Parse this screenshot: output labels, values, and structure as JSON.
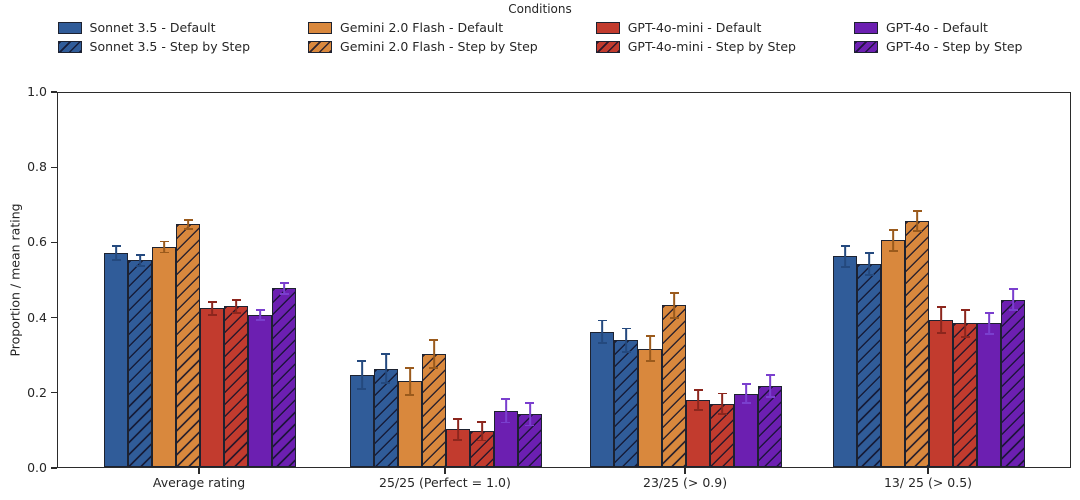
{
  "chart_data": {
    "type": "bar",
    "legend_title": "Conditions",
    "ylabel": "Proportion / mean rating",
    "ylim": [
      0,
      1.0
    ],
    "yticks": [
      "0.0",
      "0.2",
      "0.4",
      "0.6",
      "0.8",
      "1.0"
    ],
    "categories": [
      "Average rating",
      "25/25 (Perfect = 1.0)",
      "23/25 (> 0.9)",
      "13/ 25 (> 0.5)"
    ],
    "series": [
      {
        "name": "Sonnet 3.5 - Default",
        "color": "#305c99",
        "err_color": "#24497e",
        "hatch": false,
        "values": [
          0.57,
          0.245,
          0.36,
          0.56
        ],
        "errors": [
          0.021,
          0.04,
          0.032,
          0.03
        ]
      },
      {
        "name": "Sonnet 3.5 - Step by Step",
        "color": "#305c99",
        "err_color": "#24497e",
        "hatch": true,
        "values": [
          0.55,
          0.262,
          0.337,
          0.54
        ],
        "errors": [
          0.017,
          0.041,
          0.034,
          0.032
        ]
      },
      {
        "name": "Gemini 2.0 Flash - Default",
        "color": "#d9883d",
        "err_color": "#9a5a1c",
        "hatch": false,
        "values": [
          0.585,
          0.228,
          0.315,
          0.603
        ],
        "errors": [
          0.017,
          0.038,
          0.035,
          0.03
        ]
      },
      {
        "name": "Gemini 2.0 Flash - Step by Step",
        "color": "#d9883d",
        "err_color": "#9a5a1c",
        "hatch": true,
        "values": [
          0.645,
          0.3,
          0.43,
          0.655
        ],
        "errors": [
          0.014,
          0.04,
          0.036,
          0.029
        ]
      },
      {
        "name": "GPT-4o-mini - Default",
        "color": "#c23b2e",
        "err_color": "#8c261d",
        "hatch": false,
        "values": [
          0.422,
          0.1,
          0.178,
          0.39
        ],
        "errors": [
          0.02,
          0.03,
          0.029,
          0.037
        ]
      },
      {
        "name": "GPT-4o-mini - Step by Step",
        "color": "#c23b2e",
        "err_color": "#8c261d",
        "hatch": true,
        "values": [
          0.427,
          0.095,
          0.168,
          0.382
        ],
        "errors": [
          0.019,
          0.027,
          0.03,
          0.038
        ]
      },
      {
        "name": "GPT-4o - Default",
        "color": "#6c1fb1",
        "err_color": "#7a3fce",
        "hatch": false,
        "values": [
          0.405,
          0.15,
          0.195,
          0.382
        ],
        "errors": [
          0.016,
          0.034,
          0.028,
          0.031
        ]
      },
      {
        "name": "GPT-4o - Step by Step",
        "color": "#6c1fb1",
        "err_color": "#7a3fce",
        "hatch": true,
        "values": [
          0.475,
          0.14,
          0.215,
          0.445
        ],
        "errors": [
          0.017,
          0.032,
          0.032,
          0.03
        ]
      }
    ]
  }
}
